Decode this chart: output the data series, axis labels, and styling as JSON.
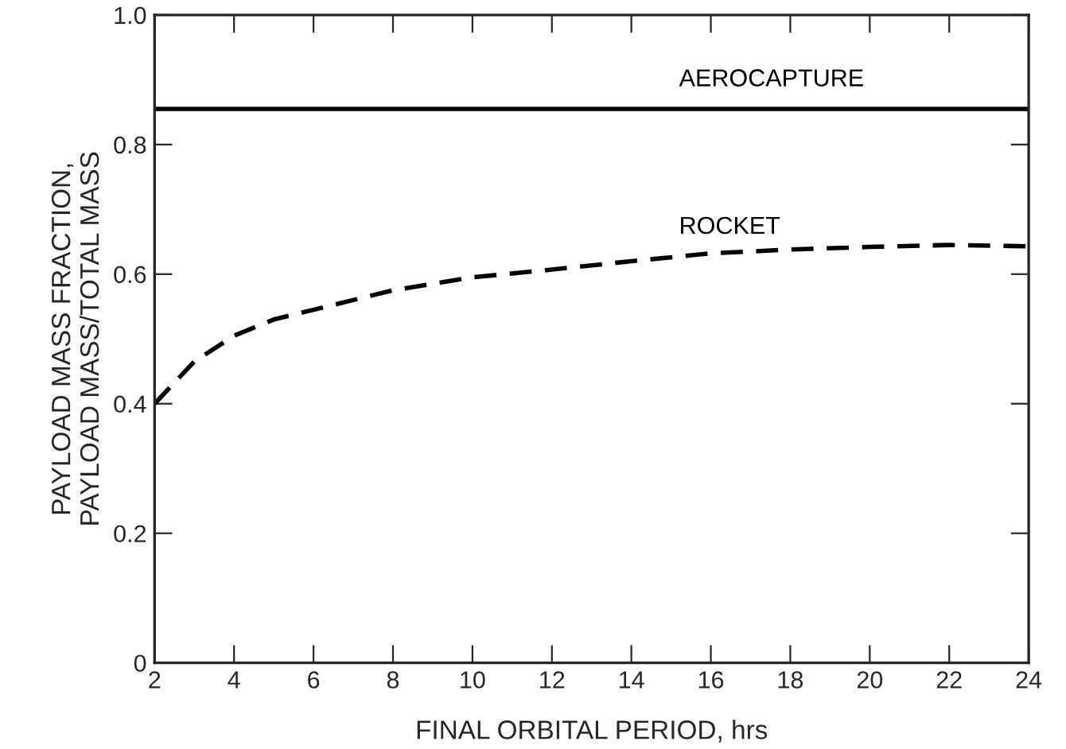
{
  "chart_data": {
    "type": "line",
    "xlabel": "FINAL ORBITAL PERIOD, hrs",
    "ylabel": "PAYLOAD MASS FRACTION,\nPAYLOAD MASS/TOTAL MASS",
    "x": [
      2,
      3,
      4,
      5,
      6,
      7,
      8,
      9,
      10,
      12,
      14,
      16,
      18,
      20,
      22,
      24
    ],
    "series": [
      {
        "name": "AEROCAPTURE",
        "color": "#000000",
        "line_style": "solid",
        "x": [
          2,
          24
        ],
        "values": [
          0.855,
          0.855
        ]
      },
      {
        "name": "ROCKET",
        "color": "#000000",
        "line_style": "dashed",
        "values": [
          0.4,
          0.465,
          0.505,
          0.53,
          0.545,
          0.56,
          0.575,
          0.585,
          0.595,
          0.607,
          0.62,
          0.632,
          0.638,
          0.642,
          0.645,
          0.643
        ]
      }
    ],
    "xlim": [
      2,
      24
    ],
    "xticks": [
      2,
      4,
      6,
      8,
      10,
      12,
      14,
      16,
      18,
      20,
      22,
      24
    ],
    "ylim": [
      0,
      1.0
    ],
    "yticks": [
      0,
      0.2,
      0.4,
      0.6,
      0.8,
      {
        "value": 1.0,
        "label": "1.0"
      }
    ],
    "grid": false,
    "legend": false
  }
}
